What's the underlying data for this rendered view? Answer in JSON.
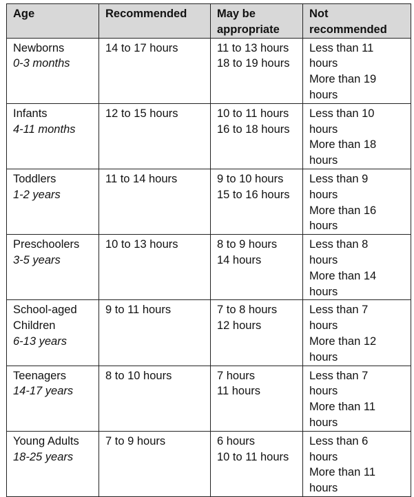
{
  "headers": [
    "Age",
    "Recommended",
    "May be appropriate",
    "Not recommended"
  ],
  "rows": [
    {
      "age": [
        "Newborns"
      ],
      "range": "0-3 months",
      "recommended": "14 to 17 hours",
      "may_be": [
        "11 to 13 hours",
        "18 to 19 hours"
      ],
      "not_recommended": [
        "Less than 11",
        "hours",
        "More than 19",
        "hours"
      ]
    },
    {
      "age": [
        "Infants"
      ],
      "range": "4-11 months",
      "recommended": "12 to 15 hours",
      "may_be": [
        "10 to 11 hours",
        "16 to 18 hours"
      ],
      "not_recommended": [
        "Less than 10",
        "hours",
        "More than 18",
        "hours"
      ]
    },
    {
      "age": [
        "Toddlers"
      ],
      "range": "1-2 years",
      "recommended": "11 to 14 hours",
      "may_be": [
        "9 to 10 hours",
        "15 to 16 hours"
      ],
      "not_recommended": [
        "Less than 9",
        "hours",
        "More than 16",
        "hours"
      ]
    },
    {
      "age": [
        "Preschoolers"
      ],
      "range": "3-5 years",
      "recommended": "10 to 13 hours",
      "may_be": [
        "8 to 9 hours",
        "14 hours"
      ],
      "not_recommended": [
        "Less than 8",
        "hours",
        "More than 14",
        "hours"
      ]
    },
    {
      "age": [
        "School-aged",
        "Children"
      ],
      "range": "6-13 years",
      "recommended": "9 to 11 hours",
      "may_be": [
        "7 to 8 hours",
        "12 hours"
      ],
      "not_recommended": [
        "Less than 7",
        "hours",
        "More than 12",
        "hours"
      ]
    },
    {
      "age": [
        "Teenagers"
      ],
      "range": "14-17 years",
      "recommended": "8 to 10 hours",
      "may_be": [
        "7 hours",
        "11 hours"
      ],
      "not_recommended": [
        "Less than 7",
        "hours",
        "More than 11",
        "hours"
      ]
    },
    {
      "age": [
        "Young Adults"
      ],
      "range": "18-25 years",
      "recommended": "7 to 9 hours",
      "may_be": [
        "6 hours",
        "10 to 11 hours"
      ],
      "not_recommended": [
        "Less than 6",
        "hours",
        "More than 11",
        "hours"
      ]
    }
  ]
}
